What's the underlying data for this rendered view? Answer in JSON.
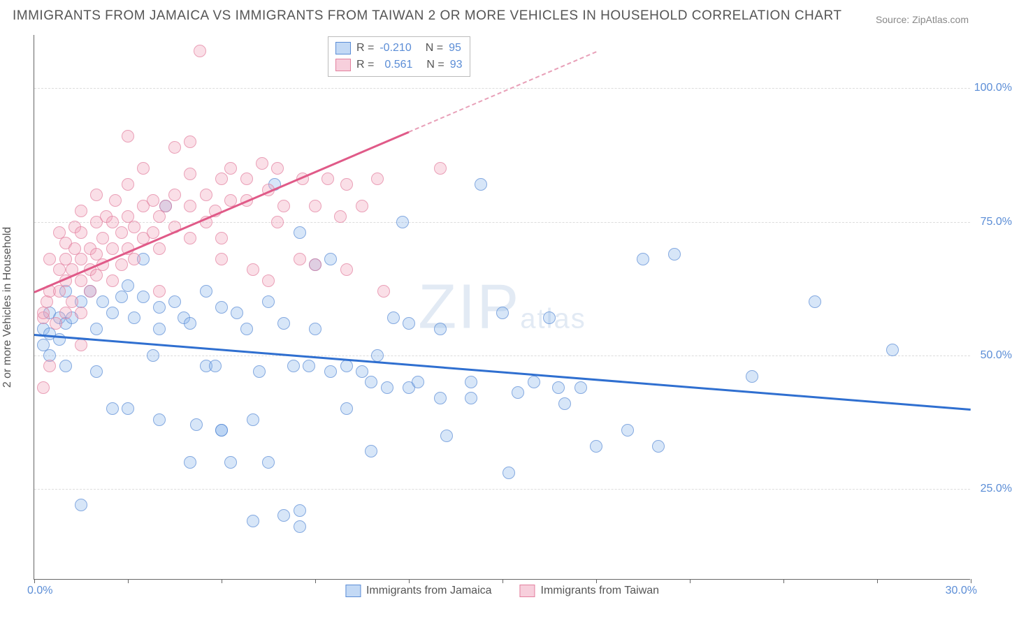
{
  "title": "IMMIGRANTS FROM JAMAICA VS IMMIGRANTS FROM TAIWAN 2 OR MORE VEHICLES IN HOUSEHOLD CORRELATION CHART",
  "source": "Source: ZipAtlas.com",
  "ylabel": "2 or more Vehicles in Household",
  "watermark_main": "ZIP",
  "watermark_sub": "atlas",
  "chart": {
    "type": "scatter",
    "xlim": [
      0,
      30
    ],
    "ylim": [
      8,
      110
    ],
    "x_tick_positions": [
      0,
      3,
      6,
      9,
      12,
      15,
      18,
      21,
      24,
      27,
      30
    ],
    "x_tick_labels": {
      "first": "0.0%",
      "last": "30.0%"
    },
    "y_gridlines": [
      25,
      50,
      75,
      100
    ],
    "y_tick_labels": [
      "25.0%",
      "50.0%",
      "75.0%",
      "100.0%"
    ],
    "background_color": "#ffffff",
    "grid_color": "#dcdcdc",
    "axis_color": "#666666",
    "point_radius": 9,
    "point_opacity": 0.75,
    "series": [
      {
        "name": "Immigrants from Jamaica",
        "color_fill": "rgba(135,180,235,0.45)",
        "color_stroke": "#5b8dd6",
        "class": "blue",
        "R": "-0.210",
        "N": "95",
        "trendline": {
          "x1": 0,
          "y1": 54,
          "x2": 30,
          "y2": 40,
          "color": "#2f6fd0"
        },
        "points": [
          [
            0.3,
            55
          ],
          [
            0.3,
            52
          ],
          [
            0.5,
            54
          ],
          [
            0.5,
            58
          ],
          [
            0.5,
            50
          ],
          [
            0.8,
            57
          ],
          [
            0.8,
            53
          ],
          [
            1.0,
            56
          ],
          [
            1.0,
            48
          ],
          [
            1.5,
            22
          ],
          [
            1.2,
            57
          ],
          [
            1.5,
            60
          ],
          [
            1.8,
            62
          ],
          [
            2.0,
            55
          ],
          [
            2.0,
            47
          ],
          [
            2.2,
            60
          ],
          [
            2.5,
            40
          ],
          [
            2.5,
            58
          ],
          [
            2.8,
            61
          ],
          [
            3.0,
            63
          ],
          [
            3.0,
            40
          ],
          [
            3.2,
            57
          ],
          [
            3.5,
            68
          ],
          [
            3.5,
            61
          ],
          [
            4.0,
            59
          ],
          [
            4.0,
            55
          ],
          [
            4.0,
            38
          ],
          [
            4.2,
            78
          ],
          [
            4.5,
            60
          ],
          [
            4.8,
            57
          ],
          [
            5.0,
            30
          ],
          [
            5.0,
            56
          ],
          [
            5.2,
            37
          ],
          [
            5.5,
            62
          ],
          [
            5.5,
            48
          ],
          [
            6.0,
            59
          ],
          [
            6.0,
            36
          ],
          [
            6.0,
            36
          ],
          [
            6.3,
            30
          ],
          [
            6.5,
            58
          ],
          [
            6.8,
            55
          ],
          [
            7.0,
            38
          ],
          [
            7.0,
            19
          ],
          [
            7.2,
            47
          ],
          [
            7.5,
            60
          ],
          [
            7.5,
            30
          ],
          [
            7.7,
            82
          ],
          [
            8.0,
            56
          ],
          [
            8.0,
            20
          ],
          [
            8.3,
            48
          ],
          [
            8.5,
            73
          ],
          [
            8.5,
            18
          ],
          [
            8.5,
            21
          ],
          [
            8.8,
            48
          ],
          [
            9.0,
            55
          ],
          [
            9.0,
            67
          ],
          [
            9.5,
            47
          ],
          [
            9.5,
            68
          ],
          [
            10.0,
            48
          ],
          [
            10.0,
            40
          ],
          [
            10.5,
            47
          ],
          [
            10.8,
            32
          ],
          [
            10.8,
            45
          ],
          [
            11.0,
            50
          ],
          [
            11.3,
            44
          ],
          [
            11.5,
            57
          ],
          [
            11.8,
            75
          ],
          [
            12.0,
            56
          ],
          [
            12.0,
            44
          ],
          [
            12.3,
            45
          ],
          [
            13.0,
            55
          ],
          [
            13.0,
            42
          ],
          [
            13.2,
            35
          ],
          [
            14.0,
            45
          ],
          [
            14.0,
            42
          ],
          [
            14.3,
            82
          ],
          [
            15.0,
            58
          ],
          [
            15.2,
            28
          ],
          [
            15.5,
            43
          ],
          [
            16.0,
            45
          ],
          [
            16.5,
            57
          ],
          [
            16.8,
            44
          ],
          [
            17.0,
            41
          ],
          [
            17.5,
            44
          ],
          [
            18.0,
            33
          ],
          [
            19.0,
            36
          ],
          [
            20.0,
            33
          ],
          [
            20.5,
            69
          ],
          [
            23.0,
            46
          ],
          [
            25.0,
            60
          ],
          [
            27.5,
            51
          ],
          [
            19.5,
            68
          ],
          [
            5.8,
            48
          ],
          [
            3.8,
            50
          ],
          [
            1.0,
            62
          ]
        ]
      },
      {
        "name": "Immigrants from Taiwan",
        "color_fill": "rgba(240,160,185,0.45)",
        "color_stroke": "#e3809f",
        "class": "pink",
        "R": "0.561",
        "N": "93",
        "trendline": {
          "x1": 0,
          "y1": 62,
          "x2": 12,
          "y2": 92,
          "color": "#e05a88"
        },
        "trendline_dash": {
          "x1": 12,
          "y1": 92,
          "x2": 18,
          "y2": 107
        },
        "points": [
          [
            0.3,
            44
          ],
          [
            0.3,
            57
          ],
          [
            0.3,
            58
          ],
          [
            0.4,
            60
          ],
          [
            0.5,
            62
          ],
          [
            0.5,
            68
          ],
          [
            0.7,
            56
          ],
          [
            0.8,
            62
          ],
          [
            0.8,
            66
          ],
          [
            0.8,
            73
          ],
          [
            1.0,
            58
          ],
          [
            1.0,
            64
          ],
          [
            1.0,
            68
          ],
          [
            1.0,
            71
          ],
          [
            1.2,
            60
          ],
          [
            1.2,
            66
          ],
          [
            1.3,
            70
          ],
          [
            1.3,
            74
          ],
          [
            1.5,
            58
          ],
          [
            1.5,
            64
          ],
          [
            1.5,
            68
          ],
          [
            1.5,
            73
          ],
          [
            1.5,
            77
          ],
          [
            1.8,
            62
          ],
          [
            1.8,
            66
          ],
          [
            1.8,
            70
          ],
          [
            2.0,
            65
          ],
          [
            2.0,
            69
          ],
          [
            2.0,
            75
          ],
          [
            2.0,
            80
          ],
          [
            2.2,
            67
          ],
          [
            2.2,
            72
          ],
          [
            2.3,
            76
          ],
          [
            2.5,
            64
          ],
          [
            2.5,
            70
          ],
          [
            2.5,
            75
          ],
          [
            2.6,
            79
          ],
          [
            2.8,
            67
          ],
          [
            2.8,
            73
          ],
          [
            3.0,
            70
          ],
          [
            3.0,
            76
          ],
          [
            3.0,
            82
          ],
          [
            3.2,
            68
          ],
          [
            3.2,
            74
          ],
          [
            3.5,
            72
          ],
          [
            3.5,
            78
          ],
          [
            3.5,
            85
          ],
          [
            3.8,
            73
          ],
          [
            3.8,
            79
          ],
          [
            4.0,
            62
          ],
          [
            4.0,
            70
          ],
          [
            4.0,
            76
          ],
          [
            4.2,
            78
          ],
          [
            4.5,
            74
          ],
          [
            4.5,
            80
          ],
          [
            4.5,
            89
          ],
          [
            5.0,
            72
          ],
          [
            5.0,
            78
          ],
          [
            5.0,
            84
          ],
          [
            5.0,
            90
          ],
          [
            5.3,
            107
          ],
          [
            5.5,
            75
          ],
          [
            5.5,
            80
          ],
          [
            5.8,
            77
          ],
          [
            6.0,
            72
          ],
          [
            6.0,
            68
          ],
          [
            6.0,
            83
          ],
          [
            6.3,
            79
          ],
          [
            6.3,
            85
          ],
          [
            6.8,
            79
          ],
          [
            6.8,
            83
          ],
          [
            7.0,
            66
          ],
          [
            7.3,
            86
          ],
          [
            7.5,
            64
          ],
          [
            7.5,
            81
          ],
          [
            7.8,
            85
          ],
          [
            7.8,
            75
          ],
          [
            8.0,
            78
          ],
          [
            8.5,
            68
          ],
          [
            8.6,
            83
          ],
          [
            9.0,
            78
          ],
          [
            9.0,
            67
          ],
          [
            9.4,
            83
          ],
          [
            9.8,
            76
          ],
          [
            10.0,
            82
          ],
          [
            10.0,
            66
          ],
          [
            10.5,
            78
          ],
          [
            11.0,
            83
          ],
          [
            11.2,
            62
          ],
          [
            13.0,
            85
          ],
          [
            0.5,
            48
          ],
          [
            1.5,
            52
          ],
          [
            3.0,
            91
          ]
        ]
      }
    ]
  },
  "bottom_legend": [
    {
      "swatch": "blue",
      "label": "Immigrants from Jamaica"
    },
    {
      "swatch": "pink",
      "label": "Immigrants from Taiwan"
    }
  ]
}
